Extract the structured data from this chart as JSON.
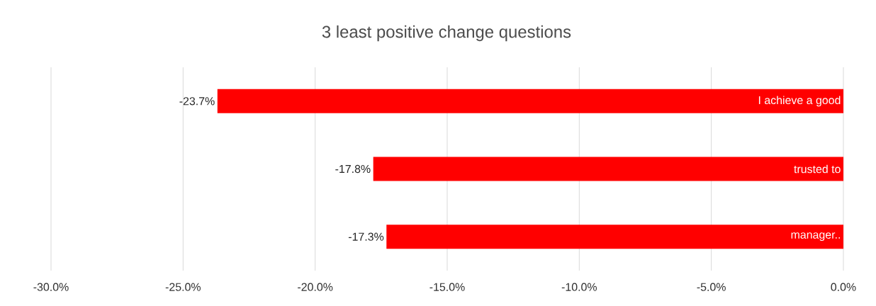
{
  "chart_data": {
    "type": "bar",
    "orientation": "horizontal",
    "title": "3 least positive change questions",
    "categories": [
      "I achieve a good",
      "trusted to",
      "manager.."
    ],
    "values": [
      -23.7,
      -17.8,
      -17.3
    ],
    "value_labels": [
      "-23.7%",
      "-17.8%",
      "-17.3%"
    ],
    "color": "#ff0000",
    "xlim": [
      -30,
      0
    ],
    "xticks": [
      {
        "value": -30,
        "label": "-30.0%"
      },
      {
        "value": -25,
        "label": "-25.0%"
      },
      {
        "value": -20,
        "label": "-20.0%"
      },
      {
        "value": -15,
        "label": "-15.0%"
      },
      {
        "value": -10,
        "label": "-10.0%"
      },
      {
        "value": -5,
        "label": "-5.0%"
      },
      {
        "value": 0,
        "label": "0.0%"
      }
    ],
    "grid": "x"
  }
}
